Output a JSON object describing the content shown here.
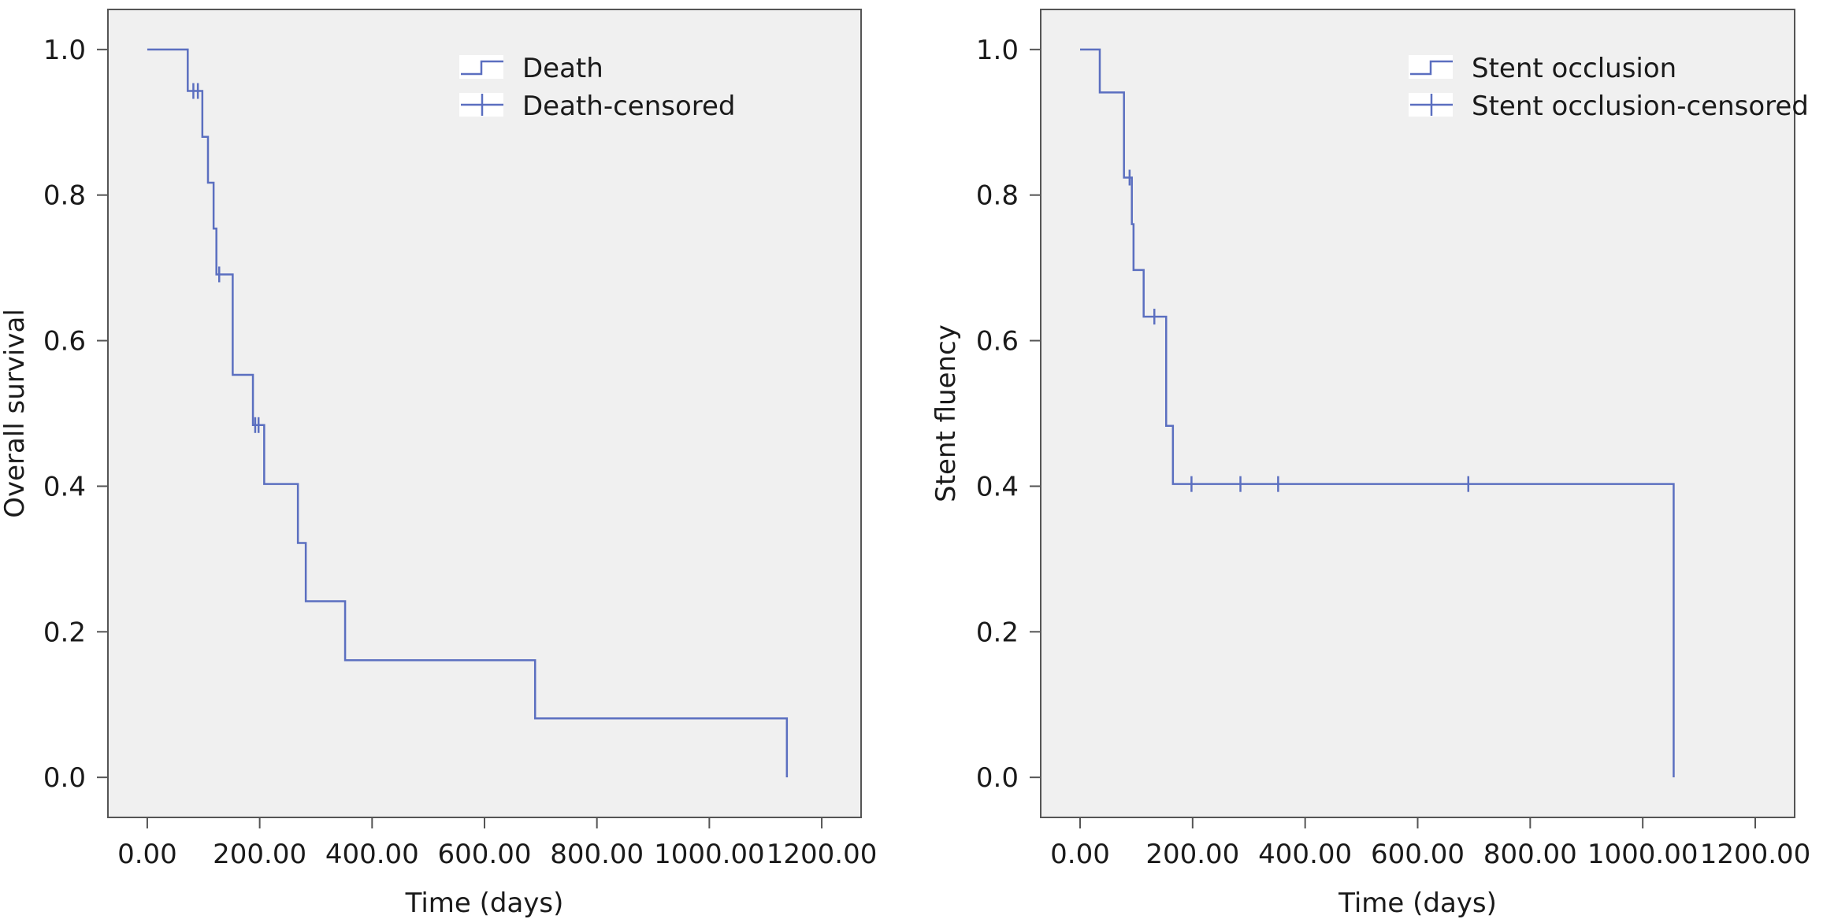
{
  "chart_data": [
    {
      "type": "line",
      "step": true,
      "title": "",
      "xlabel": "Time (days)",
      "ylabel": "Overall survival",
      "xlim": [
        -70,
        1270
      ],
      "ylim": [
        -0.055,
        1.055
      ],
      "xticks": [
        0,
        200,
        400,
        600,
        800,
        1000,
        1200
      ],
      "xtick_labels": [
        "0.00",
        "200.00",
        "400.00",
        "600.00",
        "800.00",
        "1000.00",
        "1200.00"
      ],
      "yticks": [
        0,
        0.2,
        0.4,
        0.6,
        0.8,
        1.0
      ],
      "ytick_labels": [
        "0.0",
        "0.2",
        "0.4",
        "0.6",
        "0.8",
        "1.0"
      ],
      "grid": false,
      "legend_position": "top-right",
      "legend": [
        "Death",
        "Death-censored"
      ],
      "color": "#5b6fc0",
      "series": [
        {
          "name": "Death",
          "x": [
            0,
            72,
            98,
            108,
            118,
            123,
            152,
            188,
            208,
            268,
            282,
            352,
            690,
            1138
          ],
          "y": [
            1.0,
            0.943,
            0.88,
            0.817,
            0.754,
            0.691,
            0.553,
            0.484,
            0.403,
            0.322,
            0.242,
            0.161,
            0.081,
            0.0
          ]
        },
        {
          "name": "Death-censored",
          "x": [
            82,
            90,
            128,
            192,
            198
          ],
          "y": [
            0.943,
            0.943,
            0.691,
            0.484,
            0.484
          ]
        }
      ]
    },
    {
      "type": "line",
      "step": true,
      "title": "",
      "xlabel": "Time (days)",
      "ylabel": "Stent fluency",
      "xlim": [
        -70,
        1270
      ],
      "ylim": [
        -0.055,
        1.055
      ],
      "xticks": [
        0,
        200,
        400,
        600,
        800,
        1000,
        1200
      ],
      "xtick_labels": [
        "0.00",
        "200.00",
        "400.00",
        "600.00",
        "800.00",
        "1000.00",
        "1200.00"
      ],
      "yticks": [
        0,
        0.2,
        0.4,
        0.6,
        0.8,
        1.0
      ],
      "ytick_labels": [
        "0.0",
        "0.2",
        "0.4",
        "0.6",
        "0.8",
        "1.0"
      ],
      "grid": false,
      "legend_position": "top-right",
      "legend": [
        "Stent occlusion",
        "Stent occlusion-censored"
      ],
      "color": "#5b6fc0",
      "series": [
        {
          "name": "Stent occlusion",
          "x": [
            0,
            35,
            78,
            92,
            95,
            113,
            153,
            165,
            1055
          ],
          "y": [
            1.0,
            0.941,
            0.824,
            0.76,
            0.697,
            0.633,
            0.483,
            0.403,
            0.0
          ]
        },
        {
          "name": "Stent occlusion-censored",
          "x": [
            88,
            132,
            153,
            198,
            285,
            352,
            690
          ],
          "y": [
            0.824,
            0.633,
            0.563,
            0.403,
            0.403,
            0.403,
            0.403
          ]
        }
      ]
    }
  ]
}
